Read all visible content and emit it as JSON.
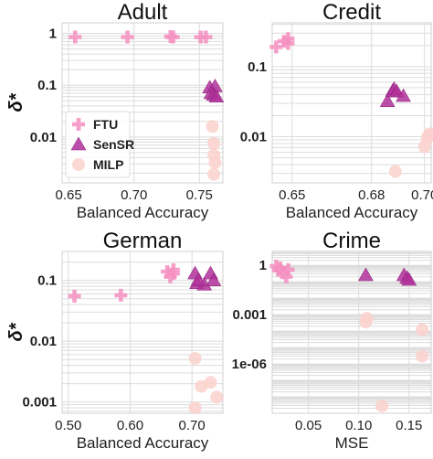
{
  "chart_data": [
    {
      "type": "scatter",
      "title": "Adult",
      "xlabel": "Balanced Accuracy",
      "ylabel": "δ*",
      "yscale": "log",
      "xlim": [
        0.645,
        0.768
      ],
      "ylim": [
        0.0013,
        1.6
      ],
      "xticks": [
        0.65,
        0.7,
        0.75
      ],
      "xtick_labels": [
        "0.65",
        "0.70",
        "0.75"
      ],
      "yticks": [
        1,
        0.1,
        0.01
      ],
      "ytick_labels": [
        "1",
        "0.1",
        "0.01"
      ],
      "grid": true,
      "legend": {
        "position": "lower-left",
        "entries": [
          "FTU",
          "SenSR",
          "MILP"
        ]
      },
      "series": [
        {
          "name": "FTU",
          "marker": "plus",
          "color": "#f48fc0",
          "points": [
            [
              0.655,
              0.85
            ],
            [
              0.695,
              0.85
            ],
            [
              0.728,
              0.87
            ],
            [
              0.73,
              0.85
            ],
            [
              0.751,
              0.85
            ],
            [
              0.755,
              0.85
            ]
          ]
        },
        {
          "name": "SenSR",
          "marker": "triangle",
          "color": "#b0309a",
          "points": [
            [
              0.758,
              0.09
            ],
            [
              0.762,
              0.095
            ],
            [
              0.759,
              0.07
            ],
            [
              0.761,
              0.065
            ],
            [
              0.763,
              0.06
            ]
          ]
        },
        {
          "name": "MILP",
          "marker": "circle",
          "color": "#fbd1cc",
          "points": [
            [
              0.76,
              0.016
            ],
            [
              0.761,
              0.0075
            ],
            [
              0.761,
              0.0045
            ],
            [
              0.762,
              0.0032
            ],
            [
              0.761,
              0.0019
            ]
          ]
        }
      ]
    },
    {
      "type": "scatter",
      "title": "Credit",
      "xlabel": "Balanced Accuracy",
      "ylabel": "",
      "yscale": "log",
      "xlim": [
        0.6425,
        0.7025
      ],
      "ylim": [
        0.0022,
        0.42
      ],
      "xticks": [
        0.65,
        0.68,
        0.7
      ],
      "xtick_labels": [
        "0.65",
        "0.68",
        "0.70"
      ],
      "yticks": [
        0.1,
        0.01
      ],
      "ytick_labels": [
        "0.1",
        "0.01"
      ],
      "grid": true,
      "series": [
        {
          "name": "FTU",
          "marker": "plus",
          "color": "#f48fc0",
          "points": [
            [
              0.644,
              0.19
            ],
            [
              0.647,
              0.23
            ],
            [
              0.6485,
              0.25
            ],
            [
              0.6485,
              0.215
            ]
          ]
        },
        {
          "name": "SenSR",
          "marker": "triangle",
          "color": "#b0309a",
          "points": [
            [
              0.686,
              0.032
            ],
            [
              0.688,
              0.045
            ],
            [
              0.6885,
              0.048
            ],
            [
              0.6895,
              0.044
            ],
            [
              0.692,
              0.038
            ]
          ]
        },
        {
          "name": "MILP",
          "marker": "circle",
          "color": "#fbd1cc",
          "points": [
            [
              0.689,
              0.0032
            ],
            [
              0.7,
              0.0072
            ],
            [
              0.701,
              0.0095
            ],
            [
              0.702,
              0.011
            ],
            [
              0.7015,
              0.0105
            ]
          ]
        }
      ]
    },
    {
      "type": "scatter",
      "title": "German",
      "xlabel": "Balanced Accuracy",
      "ylabel": "δ*",
      "yscale": "log",
      "xlim": [
        0.49,
        0.75
      ],
      "ylim": [
        0.00065,
        0.3
      ],
      "xticks": [
        0.5,
        0.6,
        0.7
      ],
      "xtick_labels": [
        "0.50",
        "0.60",
        "0.70"
      ],
      "yticks": [
        0.1,
        0.01,
        0.001
      ],
      "ytick_labels": [
        "0.1",
        "0.01",
        "0.001"
      ],
      "grid": true,
      "series": [
        {
          "name": "FTU",
          "marker": "plus",
          "color": "#f48fc0",
          "points": [
            [
              0.51,
              0.055
            ],
            [
              0.585,
              0.057
            ],
            [
              0.66,
              0.14
            ],
            [
              0.665,
              0.115
            ],
            [
              0.67,
              0.15
            ],
            [
              0.67,
              0.13
            ]
          ]
        },
        {
          "name": "SenSR",
          "marker": "triangle",
          "color": "#b0309a",
          "points": [
            [
              0.705,
              0.13
            ],
            [
              0.708,
              0.09
            ],
            [
              0.72,
              0.085
            ],
            [
              0.73,
              0.13
            ],
            [
              0.735,
              0.1
            ],
            [
              0.71,
              0.1
            ]
          ]
        },
        {
          "name": "MILP",
          "marker": "circle",
          "color": "#fbd1cc",
          "points": [
            [
              0.705,
              0.0052
            ],
            [
              0.715,
              0.0018
            ],
            [
              0.73,
              0.0021
            ],
            [
              0.74,
              0.0012
            ],
            [
              0.705,
              0.0008
            ]
          ]
        }
      ]
    },
    {
      "type": "scatter",
      "title": "Crime",
      "xlabel": "MSE",
      "ylabel": "",
      "yscale": "log",
      "xlim": [
        0.014,
        0.172
      ],
      "ylim": [
        1e-09,
        7
      ],
      "xticks": [
        0.05,
        0.1,
        0.15
      ],
      "xtick_labels": [
        "0.05",
        "0.10",
        "0.15"
      ],
      "yticks": [
        1,
        0.001,
        1e-06
      ],
      "ytick_labels": [
        "1",
        "0.001",
        "1e-06"
      ],
      "grid": true,
      "series": [
        {
          "name": "FTU",
          "marker": "plus",
          "color": "#f48fc0",
          "points": [
            [
              0.018,
              0.9
            ],
            [
              0.022,
              0.7
            ],
            [
              0.025,
              0.35
            ],
            [
              0.028,
              0.2
            ],
            [
              0.03,
              0.55
            ],
            [
              0.02,
              0.5
            ]
          ]
        },
        {
          "name": "SenSR",
          "marker": "triangle",
          "color": "#b0309a",
          "points": [
            [
              0.107,
              0.25
            ],
            [
              0.145,
              0.25
            ],
            [
              0.148,
              0.17
            ],
            [
              0.15,
              0.13
            ]
          ]
        },
        {
          "name": "MILP",
          "marker": "circle",
          "color": "#fbd1cc",
          "points": [
            [
              0.107,
              0.00035
            ],
            [
              0.108,
              0.0006
            ],
            [
              0.123,
              2.8e-09
            ],
            [
              0.163,
              0.00012
            ],
            [
              0.163,
              3e-06
            ]
          ]
        }
      ]
    }
  ]
}
